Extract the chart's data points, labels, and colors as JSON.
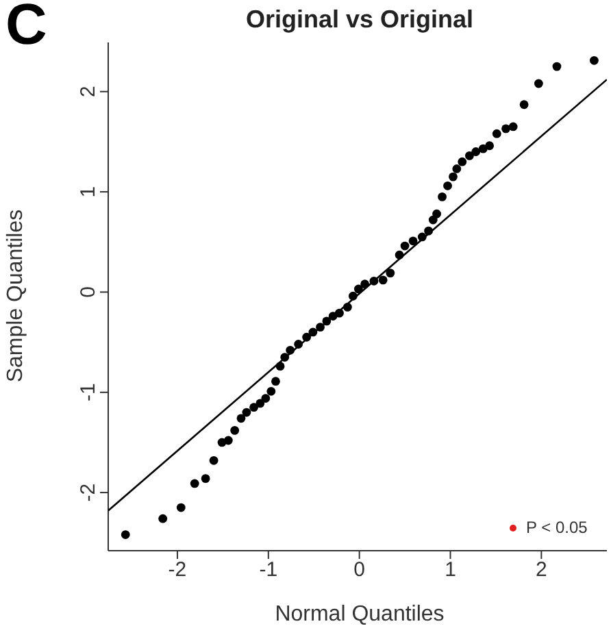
{
  "chart_data": {
    "type": "scatter",
    "title": "Original vs Original",
    "xlabel": "Normal Quantiles",
    "ylabel": "Sample Quantiles",
    "xlim": [
      -2.76,
      2.72
    ],
    "ylim": [
      -2.58,
      2.49
    ],
    "xticks": [
      -2,
      -1,
      0,
      1,
      2
    ],
    "yticks": [
      -2,
      -1,
      0,
      1,
      2
    ],
    "marker": "circle",
    "annotations": [
      "C",
      "P < 0.05"
    ],
    "series": [
      {
        "color": "#000000",
        "x": [
          -2.57,
          -2.16,
          -1.96,
          -1.81,
          -1.69,
          -1.6,
          -1.51,
          -1.44,
          -1.37,
          -1.3,
          -1.24,
          -1.16,
          -1.09,
          -1.03,
          -0.97,
          -0.92,
          -0.87,
          -0.82,
          -0.76,
          -0.67,
          -0.58,
          -0.51,
          -0.43,
          -0.36,
          -0.29,
          -0.22,
          -0.13,
          -0.07,
          -0.01,
          0.06,
          0.16,
          0.26,
          0.34,
          0.44,
          0.5,
          0.59,
          0.69,
          0.76,
          0.81,
          0.85,
          0.91,
          0.97,
          1.03,
          1.07,
          1.13,
          1.21,
          1.28,
          1.36,
          1.43,
          1.51,
          1.61,
          1.69,
          1.81,
          1.97,
          2.17,
          2.58
        ],
        "values": [
          -2.42,
          -2.26,
          -2.15,
          -1.91,
          -1.86,
          -1.68,
          -1.5,
          -1.48,
          -1.38,
          -1.26,
          -1.2,
          -1.15,
          -1.11,
          -1.06,
          -0.99,
          -0.89,
          -0.74,
          -0.65,
          -0.58,
          -0.52,
          -0.45,
          -0.4,
          -0.35,
          -0.29,
          -0.24,
          -0.21,
          -0.15,
          -0.04,
          0.03,
          0.08,
          0.11,
          0.12,
          0.19,
          0.37,
          0.46,
          0.51,
          0.55,
          0.61,
          0.72,
          0.78,
          0.95,
          1.06,
          1.15,
          1.23,
          1.3,
          1.36,
          1.4,
          1.43,
          1.46,
          1.58,
          1.63,
          1.65,
          1.87,
          2.08,
          2.25,
          2.31
        ]
      },
      {
        "type": "line",
        "marker": "none",
        "color": "#000000",
        "x": [
          -2.76,
          2.72
        ],
        "values": [
          -2.18,
          2.12
        ]
      }
    ]
  }
}
